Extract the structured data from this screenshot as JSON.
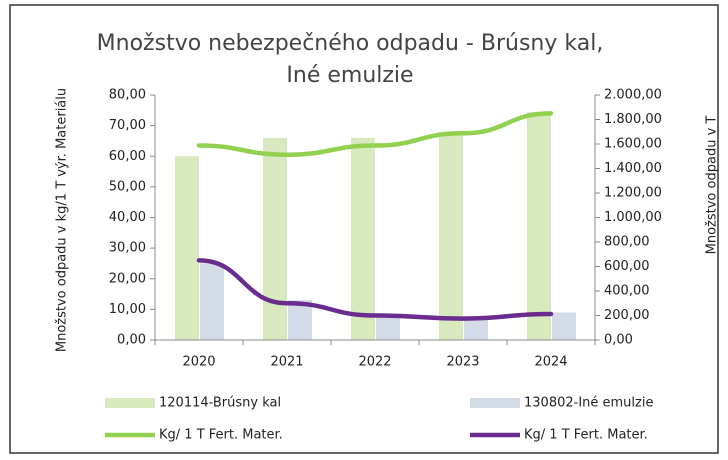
{
  "chart_data": {
    "type": "bar",
    "title": "Množstvo nebezpečného odpadu - Brúsny kal, Iné emulzie",
    "ylabel": "Množstvo odpadu v kg/1 T výr. Materiálu",
    "y2label": "Množstvo odpadu v T",
    "categories": [
      "2020",
      "2021",
      "2022",
      "2023",
      "2024"
    ],
    "series": [
      {
        "name": "120114-Brúsny kal",
        "type": "bar",
        "axis": "y2",
        "color": "#d7e9bd",
        "values": [
          1500,
          1650,
          1650,
          1700,
          1860
        ]
      },
      {
        "name": "130802-Iné emulzie",
        "type": "bar",
        "axis": "y2",
        "color": "#d3dbe6",
        "values": [
          625,
          325,
          200,
          175,
          225
        ]
      },
      {
        "name": "Kg/ 1 T Fert. Mater.",
        "type": "line",
        "axis": "y",
        "color": "#92d050",
        "values": [
          63.5,
          60.5,
          63.5,
          67.5,
          74
        ]
      },
      {
        "name": "Kg/ 1 T Fert. Mater.",
        "type": "line",
        "axis": "y",
        "color": "#6a2c8e",
        "values": [
          26,
          12,
          8,
          7,
          8.5
        ]
      }
    ],
    "ylim": [
      0,
      80
    ],
    "yticks": [
      {
        "value": 0,
        "label": "0,00"
      },
      {
        "value": 10,
        "label": "10,00"
      },
      {
        "value": 20,
        "label": "20,00"
      },
      {
        "value": 30,
        "label": "30,00"
      },
      {
        "value": 40,
        "label": "40,00"
      },
      {
        "value": 50,
        "label": "50,00"
      },
      {
        "value": 60,
        "label": "60,00"
      },
      {
        "value": 70,
        "label": "70,00"
      },
      {
        "value": 80,
        "label": "80,00"
      }
    ],
    "y2lim": [
      0,
      2000
    ],
    "y2ticks": [
      {
        "value": 0,
        "label": "0,00"
      },
      {
        "value": 200,
        "label": "200,00"
      },
      {
        "value": 400,
        "label": "400,00"
      },
      {
        "value": 600,
        "label": "600,00"
      },
      {
        "value": 800,
        "label": "800,00"
      },
      {
        "value": 1000,
        "label": "1.000,00"
      },
      {
        "value": 1200,
        "label": "1.200,00"
      },
      {
        "value": 1400,
        "label": "1.400,00"
      },
      {
        "value": 1600,
        "label": "1.600,00"
      },
      {
        "value": 1800,
        "label": "1.800,00"
      },
      {
        "value": 2000,
        "label": "2.000,00"
      }
    ]
  }
}
